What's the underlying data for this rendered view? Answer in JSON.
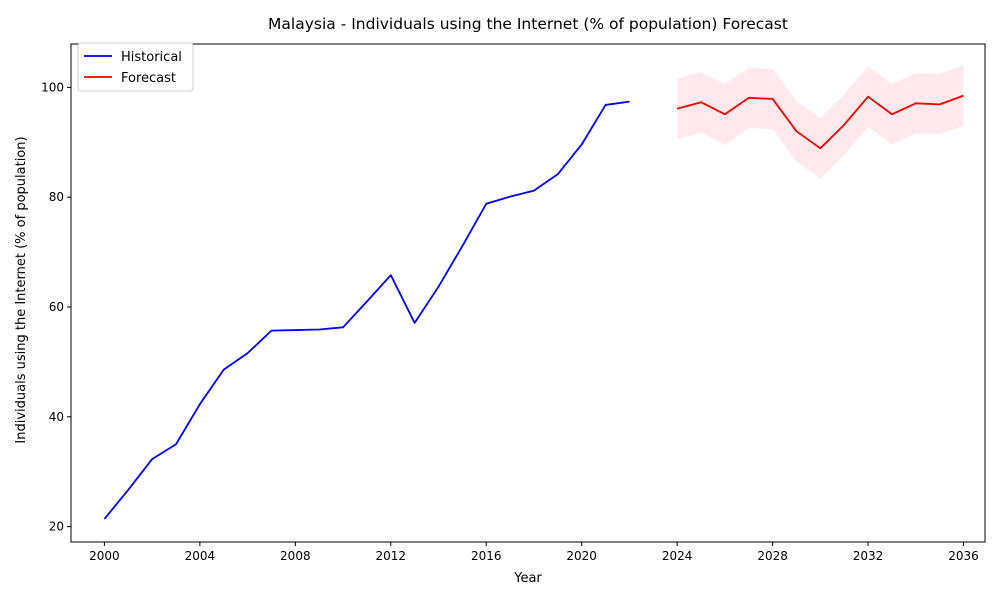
{
  "chart_data": {
    "type": "line",
    "title": "Malaysia - Individuals using the Internet (% of population) Forecast",
    "xlabel": "Year",
    "ylabel": "Individuals using the Internet (% of population)",
    "xlim": [
      1998.6,
      2036.9
    ],
    "ylim": [
      17.2,
      107.9
    ],
    "x_ticks": [
      2000,
      2004,
      2008,
      2012,
      2016,
      2020,
      2024,
      2028,
      2032,
      2036
    ],
    "y_ticks": [
      20,
      40,
      60,
      80,
      100
    ],
    "grid": false,
    "legend_position": "top-left",
    "series": [
      {
        "name": "Historical",
        "color": "#0000ff",
        "x": [
          2000,
          2001,
          2002,
          2003,
          2004,
          2005,
          2006,
          2007,
          2008,
          2009,
          2010,
          2011,
          2012,
          2013,
          2014,
          2015,
          2016,
          2017,
          2018,
          2019,
          2020,
          2021,
          2022
        ],
        "y": [
          21.4,
          26.7,
          32.3,
          35.0,
          42.3,
          48.6,
          51.6,
          55.7,
          55.8,
          55.9,
          56.3,
          61.0,
          65.8,
          57.1,
          63.7,
          71.1,
          78.8,
          80.1,
          81.2,
          84.2,
          89.6,
          96.8,
          97.4
        ]
      },
      {
        "name": "Forecast",
        "color": "#ff0000",
        "band_color": "#ffc0cb",
        "x": [
          2024,
          2025,
          2026,
          2027,
          2028,
          2029,
          2030,
          2031,
          2032,
          2033,
          2034,
          2035,
          2036
        ],
        "y": [
          96.1,
          97.3,
          95.1,
          98.1,
          97.9,
          92.0,
          88.9,
          93.2,
          98.3,
          95.1,
          97.1,
          96.9,
          98.5
        ],
        "lower": [
          90.5,
          91.8,
          89.5,
          92.6,
          92.4,
          86.5,
          83.4,
          87.7,
          92.8,
          89.6,
          91.6,
          91.5,
          93.0
        ],
        "upper": [
          101.6,
          102.8,
          100.6,
          103.6,
          103.4,
          97.5,
          94.4,
          98.7,
          103.8,
          100.6,
          102.6,
          102.5,
          104.0
        ]
      }
    ]
  }
}
